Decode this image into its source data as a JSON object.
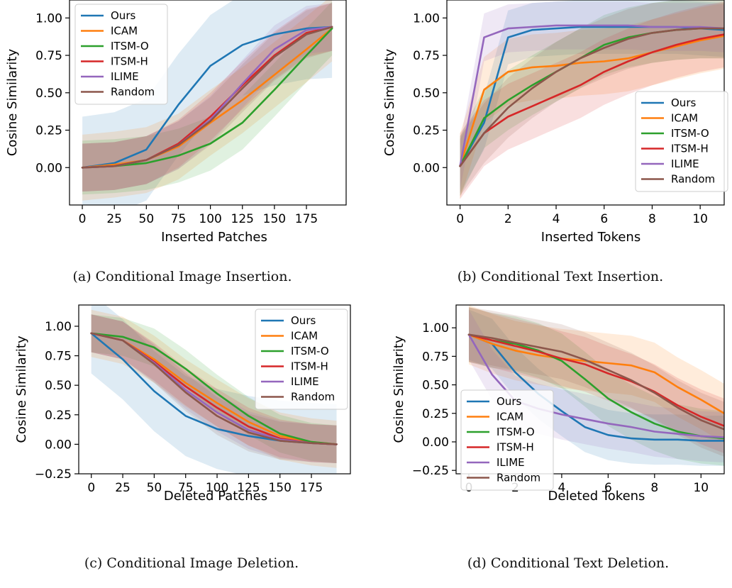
{
  "chart_data": [
    {
      "type": "line",
      "caption": "(a) Conditional Image Insertion.",
      "xlabel": "Inserted Patches",
      "ylabel": "Cosine Similarity",
      "xlim": [
        -10,
        206
      ],
      "ylim": [
        -0.25,
        1.12
      ],
      "xticks": [
        0,
        25,
        50,
        75,
        100,
        125,
        150,
        175
      ],
      "xtick_labels": [
        "0",
        "25",
        "50",
        "75",
        "100",
        "125",
        "150",
        "175"
      ],
      "yticks": [
        0.0,
        0.25,
        0.5,
        0.75,
        1.0
      ],
      "ytick_labels": [
        "0.00",
        "0.25",
        "0.50",
        "0.75",
        "1.00"
      ],
      "legend_position": "upper-left",
      "x": [
        0,
        25,
        50,
        75,
        100,
        125,
        150,
        175,
        195
      ],
      "series": [
        {
          "name": "Ours",
          "values": [
            0.0,
            0.03,
            0.12,
            0.42,
            0.68,
            0.82,
            0.89,
            0.93,
            0.94
          ],
          "band": 0.34
        },
        {
          "name": "ICAM",
          "values": [
            0.0,
            0.02,
            0.05,
            0.14,
            0.3,
            0.45,
            0.62,
            0.79,
            0.93
          ],
          "band": 0.22
        },
        {
          "name": "ITSM-O",
          "values": [
            0.0,
            0.01,
            0.03,
            0.08,
            0.16,
            0.3,
            0.52,
            0.75,
            0.93
          ],
          "band": 0.18
        },
        {
          "name": "ITSM-H",
          "values": [
            0.0,
            0.01,
            0.05,
            0.16,
            0.34,
            0.55,
            0.75,
            0.9,
            0.94
          ],
          "band": 0.16
        },
        {
          "name": "ILIME",
          "values": [
            0.0,
            0.01,
            0.05,
            0.15,
            0.32,
            0.56,
            0.79,
            0.92,
            0.94
          ],
          "band": 0.16
        },
        {
          "name": "Random",
          "values": [
            0.0,
            0.01,
            0.05,
            0.15,
            0.31,
            0.53,
            0.74,
            0.89,
            0.94
          ],
          "band": 0.16
        }
      ]
    },
    {
      "type": "line",
      "caption": "(b) Conditional Text Insertion.",
      "xlabel": "Inserted Tokens",
      "ylabel": "Cosine Similarity",
      "xlim": [
        -0.55,
        11
      ],
      "ylim": [
        -0.25,
        1.12
      ],
      "xticks": [
        0,
        2,
        4,
        6,
        8,
        10
      ],
      "xtick_labels": [
        "0",
        "2",
        "4",
        "6",
        "8",
        "10"
      ],
      "yticks": [
        0.0,
        0.25,
        0.5,
        0.75,
        1.0
      ],
      "ytick_labels": [
        "0.00",
        "0.25",
        "0.50",
        "0.75",
        "1.00"
      ],
      "legend_position": "lower-right",
      "x": [
        0,
        1,
        2,
        3,
        4,
        5,
        6,
        7,
        8,
        9,
        10,
        11
      ],
      "series": [
        {
          "name": "Ours",
          "values": [
            0.01,
            0.3,
            0.87,
            0.92,
            0.93,
            0.94,
            0.94,
            0.94,
            0.94,
            0.94,
            0.93,
            0.92
          ],
          "band": 0.18
        },
        {
          "name": "ICAM",
          "values": [
            0.01,
            0.52,
            0.64,
            0.67,
            0.68,
            0.7,
            0.71,
            0.73,
            0.77,
            0.81,
            0.85,
            0.88
          ],
          "band": 0.22
        },
        {
          "name": "ITSM-O",
          "values": [
            0.01,
            0.33,
            0.45,
            0.55,
            0.64,
            0.73,
            0.82,
            0.87,
            0.9,
            0.92,
            0.93,
            0.93
          ],
          "band": 0.2
        },
        {
          "name": "ITSM-H",
          "values": [
            0.01,
            0.23,
            0.34,
            0.41,
            0.48,
            0.55,
            0.64,
            0.71,
            0.77,
            0.82,
            0.86,
            0.89
          ],
          "band": 0.22
        },
        {
          "name": "ILIME",
          "values": [
            0.01,
            0.87,
            0.93,
            0.94,
            0.95,
            0.95,
            0.95,
            0.95,
            0.94,
            0.94,
            0.94,
            0.93
          ],
          "band": 0.16
        },
        {
          "name": "Random",
          "values": [
            0.01,
            0.23,
            0.4,
            0.53,
            0.64,
            0.73,
            0.8,
            0.86,
            0.9,
            0.92,
            0.93,
            0.93
          ],
          "band": 0.2
        }
      ]
    },
    {
      "type": "line",
      "caption": "(c) Conditional Image Deletion.",
      "xlabel": "Deleted Patches",
      "ylabel": "Cosine Similarity",
      "xlim": [
        -10,
        206
      ],
      "ylim": [
        -0.25,
        1.18
      ],
      "xticks": [
        0,
        25,
        50,
        75,
        100,
        125,
        150,
        175
      ],
      "xtick_labels": [
        "0",
        "25",
        "50",
        "75",
        "100",
        "125",
        "150",
        "175"
      ],
      "yticks": [
        -0.25,
        0.0,
        0.25,
        0.5,
        0.75,
        1.0
      ],
      "ytick_labels": [
        "−0.25",
        "0.00",
        "0.25",
        "0.50",
        "0.75",
        "1.00"
      ],
      "legend_position": "upper-right",
      "x": [
        0,
        25,
        50,
        75,
        100,
        125,
        150,
        175,
        195
      ],
      "series": [
        {
          "name": "Ours",
          "values": [
            0.94,
            0.72,
            0.45,
            0.24,
            0.13,
            0.07,
            0.03,
            0.01,
            0.0
          ],
          "band": 0.34
        },
        {
          "name": "ICAM",
          "values": [
            0.94,
            0.88,
            0.72,
            0.52,
            0.35,
            0.19,
            0.07,
            0.02,
            0.0
          ],
          "band": 0.2
        },
        {
          "name": "ITSM-O",
          "values": [
            0.94,
            0.91,
            0.82,
            0.64,
            0.43,
            0.24,
            0.09,
            0.02,
            0.0
          ],
          "band": 0.16
        },
        {
          "name": "ITSM-H",
          "values": [
            0.94,
            0.88,
            0.7,
            0.49,
            0.31,
            0.15,
            0.05,
            0.01,
            0.0
          ],
          "band": 0.16
        },
        {
          "name": "ILIME",
          "values": [
            0.94,
            0.88,
            0.69,
            0.46,
            0.27,
            0.12,
            0.04,
            0.01,
            0.0
          ],
          "band": 0.16
        },
        {
          "name": "Random",
          "values": [
            0.94,
            0.88,
            0.68,
            0.44,
            0.24,
            0.1,
            0.03,
            0.01,
            0.0
          ],
          "band": 0.16
        }
      ]
    },
    {
      "type": "line",
      "caption": "(d) Conditional Text Deletion.",
      "xlabel": "Deleted Tokens",
      "ylabel": "Cosine Similarity",
      "xlim": [
        -0.55,
        11
      ],
      "ylim": [
        -0.28,
        1.2
      ],
      "xticks": [
        0,
        2,
        4,
        6,
        8,
        10
      ],
      "xtick_labels": [
        "0",
        "2",
        "4",
        "6",
        "8",
        "10"
      ],
      "yticks": [
        -0.25,
        0.0,
        0.25,
        0.5,
        0.75,
        1.0
      ],
      "ytick_labels": [
        "−0.25",
        "0.00",
        "0.25",
        "0.50",
        "0.75",
        "1.00"
      ],
      "legend_position": "lower-left",
      "x": [
        0,
        1,
        2,
        3,
        4,
        5,
        6,
        7,
        8,
        9,
        10,
        11
      ],
      "series": [
        {
          "name": "Ours",
          "values": [
            0.94,
            0.86,
            0.61,
            0.42,
            0.27,
            0.13,
            0.06,
            0.03,
            0.02,
            0.02,
            0.01,
            0.01
          ],
          "band": 0.22
        },
        {
          "name": "ICAM",
          "values": [
            0.94,
            0.86,
            0.8,
            0.76,
            0.73,
            0.71,
            0.69,
            0.67,
            0.61,
            0.48,
            0.37,
            0.25
          ],
          "band": 0.26
        },
        {
          "name": "ITSM-O",
          "values": [
            0.94,
            0.89,
            0.86,
            0.8,
            0.71,
            0.55,
            0.38,
            0.26,
            0.16,
            0.09,
            0.05,
            0.03
          ],
          "band": 0.24
        },
        {
          "name": "ITSM-H",
          "values": [
            0.94,
            0.89,
            0.84,
            0.79,
            0.73,
            0.68,
            0.6,
            0.53,
            0.44,
            0.32,
            0.22,
            0.14
          ],
          "band": 0.24
        },
        {
          "name": "ILIME",
          "values": [
            0.94,
            0.59,
            0.36,
            0.29,
            0.24,
            0.2,
            0.16,
            0.13,
            0.09,
            0.07,
            0.05,
            0.04
          ],
          "band": 0.22
        },
        {
          "name": "Random",
          "values": [
            0.94,
            0.91,
            0.87,
            0.83,
            0.79,
            0.72,
            0.63,
            0.54,
            0.43,
            0.3,
            0.19,
            0.11
          ],
          "band": 0.24
        }
      ]
    }
  ],
  "colors": {
    "Ours": "#1f77b4",
    "ICAM": "#ff7f0e",
    "ITSM-O": "#2ca02c",
    "ITSM-H": "#d62728",
    "ILIME": "#9467bd",
    "Random": "#8c564b"
  }
}
